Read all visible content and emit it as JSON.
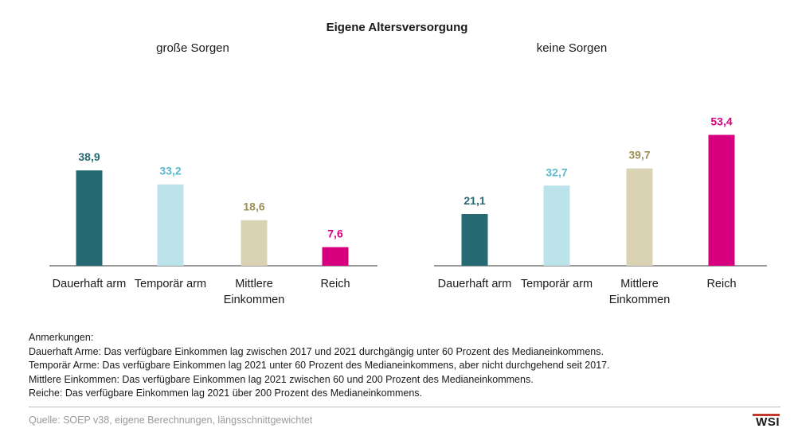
{
  "title": "Eigene Altersversorgung",
  "colors": {
    "dauerhaft_arm": "#256a72",
    "temporaer_arm": "#bce3ea",
    "mittlere_einkommen": "#d9d3b3",
    "reich": "#d6007e",
    "label_dauerhaft_arm": "#256a72",
    "label_temporaer_arm": "#5bb9cc",
    "label_mittlere_einkommen": "#9c9056",
    "label_reich": "#d6007e",
    "logo_accent": "#c0392b"
  },
  "chart_data": [
    {
      "type": "bar",
      "title": "große Sorgen",
      "categories": [
        "Dauerhaft arm",
        "Temporär arm",
        "Mittlere Einkommen",
        "Reich"
      ],
      "values": [
        38.9,
        33.2,
        18.6,
        7.6
      ],
      "value_labels": [
        "38,9",
        "33,2",
        "18,6",
        "7,6"
      ],
      "xlabel": "",
      "ylabel": "",
      "ylim": [
        0,
        60
      ],
      "grid": false
    },
    {
      "type": "bar",
      "title": "keine Sorgen",
      "categories": [
        "Dauerhaft arm",
        "Temporär arm",
        "Mittlere Einkommen",
        "Reich"
      ],
      "values": [
        21.1,
        32.7,
        39.7,
        53.4
      ],
      "value_labels": [
        "21,1",
        "32,7",
        "39,7",
        "53,4"
      ],
      "xlabel": "",
      "ylabel": "",
      "ylim": [
        0,
        60
      ],
      "grid": false
    }
  ],
  "notes": {
    "heading": "Anmerkungen:",
    "lines": [
      "Dauerhaft Arme: Das verfügbare Einkommen lag zwischen 2017 und 2021 durchgängig unter 60 Prozent des Medianeinkommens.",
      "Temporär Arme: Das verfügbare Einkommen lag 2021 unter 60 Prozent des Medianeinkommens, aber nicht durchgehend seit 2017.",
      "Mittlere Einkommen: Das verfügbare Einkommen lag 2021 zwischen 60 und 200 Prozent des Medianeinkommens.",
      "Reiche: Das verfügbare Einkommen lag 2021 über 200 Prozent des Medianeinkommens."
    ]
  },
  "source": "Quelle: SOEP v38, eigene Berechnungen, längsschnittgewichtet",
  "logo": "WSI"
}
